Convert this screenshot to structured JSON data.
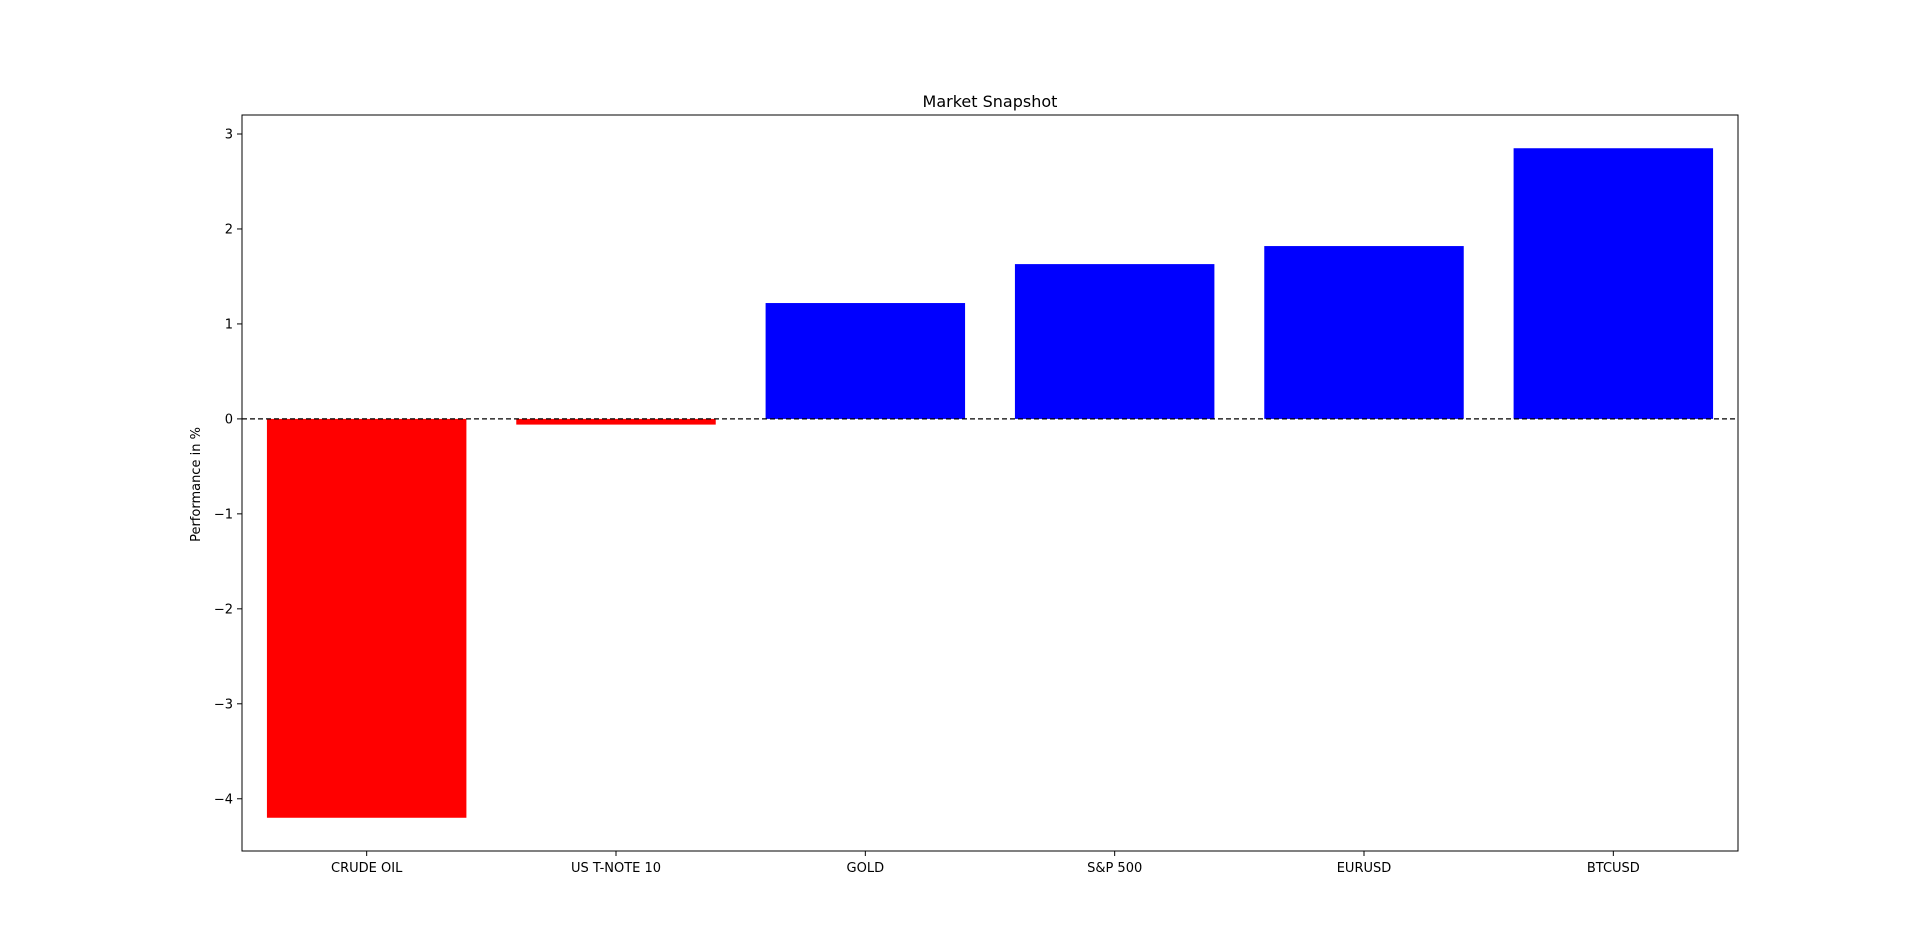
{
  "chart_data": {
    "type": "bar",
    "title": "Market Snapshot",
    "xlabel": "",
    "ylabel": "Performance in %",
    "categories": [
      "CRUDE OIL",
      "US T-NOTE 10",
      "GOLD",
      "S&P 500",
      "EURUSD",
      "BTCUSD"
    ],
    "values": [
      -4.2,
      -0.06,
      1.22,
      1.63,
      1.82,
      2.85
    ],
    "ylim": [
      -4.55,
      3.2
    ],
    "yticks": [
      3,
      2,
      1,
      0,
      -1,
      -2,
      -3,
      -4
    ],
    "ytick_labels": [
      "3",
      "2",
      "1",
      "0",
      "−1",
      "−2",
      "−3",
      "−4"
    ],
    "colors": {
      "positive": "#0000ff",
      "negative": "#ff0000",
      "zero_line": "#000000"
    },
    "zero_line": "dashed",
    "grid": false,
    "legend": "none"
  }
}
